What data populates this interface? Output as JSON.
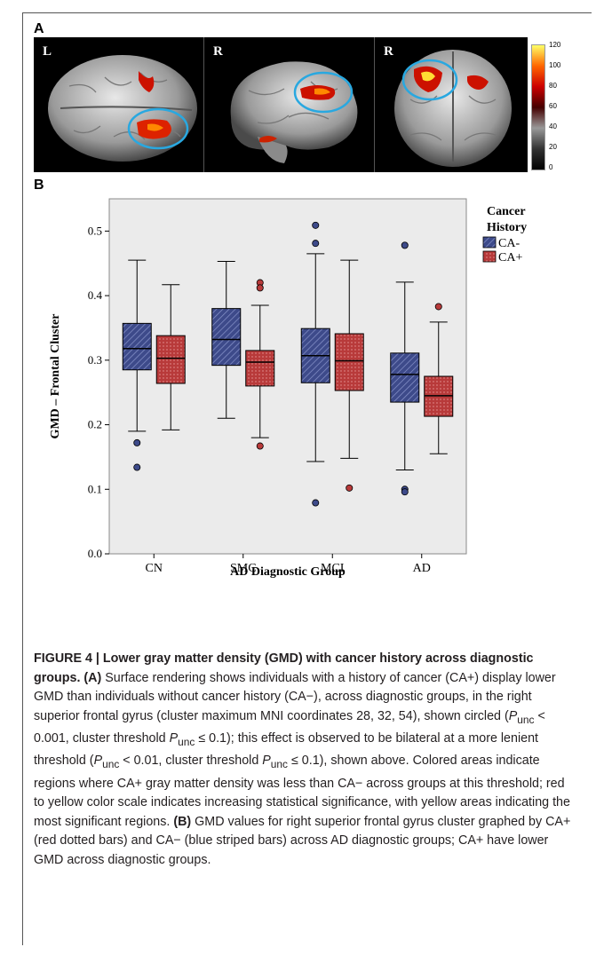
{
  "panel_a": {
    "letter": "A",
    "views": [
      {
        "label": "L",
        "icon": "brain-top-view"
      },
      {
        "label": "R",
        "icon": "brain-right-lateral-view"
      },
      {
        "label": "R",
        "icon": "brain-frontal-view"
      }
    ],
    "colorbar": {
      "ticks": [
        "120",
        "100",
        "80",
        "60",
        "40",
        "20",
        "0"
      ],
      "colors": [
        "#ffff66",
        "#ff6600",
        "#cc0000",
        "#440000",
        "#999999",
        "#333333",
        "#000000"
      ]
    }
  },
  "panel_b": {
    "letter": "B"
  },
  "chart_data": {
    "type": "box",
    "xlabel": "AD Diagnostic Group",
    "ylabel": "GMD – Frontal Cluster",
    "ylim": [
      0.0,
      0.55
    ],
    "yticks": [
      "0.0",
      "0.1",
      "0.2",
      "0.3",
      "0.4",
      "0.5"
    ],
    "categories": [
      "CN",
      "SMC",
      "MCI",
      "AD"
    ],
    "legend": {
      "title_line1": "Cancer",
      "title_line2": "History",
      "position": "right-outside"
    },
    "grid": false,
    "background": "#ebebeb",
    "series": [
      {
        "name": "CA-",
        "color": "#3d4a8a",
        "pattern": "striped",
        "boxes": [
          {
            "whisker_low": 0.19,
            "q1": 0.285,
            "median": 0.318,
            "q3": 0.357,
            "whisker_high": 0.455,
            "outliers": [
              0.172,
              0.134
            ]
          },
          {
            "whisker_low": 0.21,
            "q1": 0.292,
            "median": 0.332,
            "q3": 0.38,
            "whisker_high": 0.453,
            "outliers": []
          },
          {
            "whisker_low": 0.143,
            "q1": 0.265,
            "median": 0.307,
            "q3": 0.349,
            "whisker_high": 0.465,
            "outliers": [
              0.509,
              0.481,
              0.079
            ]
          },
          {
            "whisker_low": 0.13,
            "q1": 0.235,
            "median": 0.278,
            "q3": 0.311,
            "whisker_high": 0.421,
            "outliers": [
              0.478,
              0.1,
              0.096
            ]
          }
        ]
      },
      {
        "name": "CA+",
        "color": "#b83a3a",
        "pattern": "dotted",
        "boxes": [
          {
            "whisker_low": 0.192,
            "q1": 0.264,
            "median": 0.303,
            "q3": 0.338,
            "whisker_high": 0.417,
            "outliers": []
          },
          {
            "whisker_low": 0.18,
            "q1": 0.26,
            "median": 0.297,
            "q3": 0.315,
            "whisker_high": 0.385,
            "outliers": [
              0.42,
              0.412,
              0.167
            ]
          },
          {
            "whisker_low": 0.148,
            "q1": 0.253,
            "median": 0.299,
            "q3": 0.341,
            "whisker_high": 0.455,
            "outliers": [
              0.102
            ]
          },
          {
            "whisker_low": 0.155,
            "q1": 0.213,
            "median": 0.245,
            "q3": 0.275,
            "whisker_high": 0.359,
            "outliers": [
              0.383
            ]
          }
        ]
      }
    ]
  },
  "caption": {
    "figure_heading": "FIGURE 4 | Lower gray matter density (GMD) with cancer history across diagnostic groups.",
    "a_label": "(A)",
    "a_text_1": " Surface rendering shows individuals with a history of cancer (CA+) display lower GMD than individuals without cancer history (CA−), across diagnostic groups, in the right superior frontal gyrus (cluster maximum MNI coordinates 28, 32, 54), shown circled (",
    "p": "P",
    "unc": "unc",
    "a_text_2": " < 0.001, cluster threshold ",
    "a_text_3": " ≤ 0.1); this effect is observed to be bilateral at a more lenient threshold (",
    "a_text_4": " < 0.01, cluster threshold ",
    "a_text_5": " ≤ 0.1), shown above. Colored areas indicate regions where CA+ gray matter density was less than CA− across groups at this threshold; red to yellow color scale indicates increasing statistical significance, with yellow areas indicating the most significant regions. ",
    "b_label": "(B)",
    "b_text": " GMD values for right superior frontal gyrus cluster graphed by CA+ (red dotted bars) and CA− (blue striped bars) across AD diagnostic groups; CA+ have lower GMD across diagnostic groups."
  }
}
